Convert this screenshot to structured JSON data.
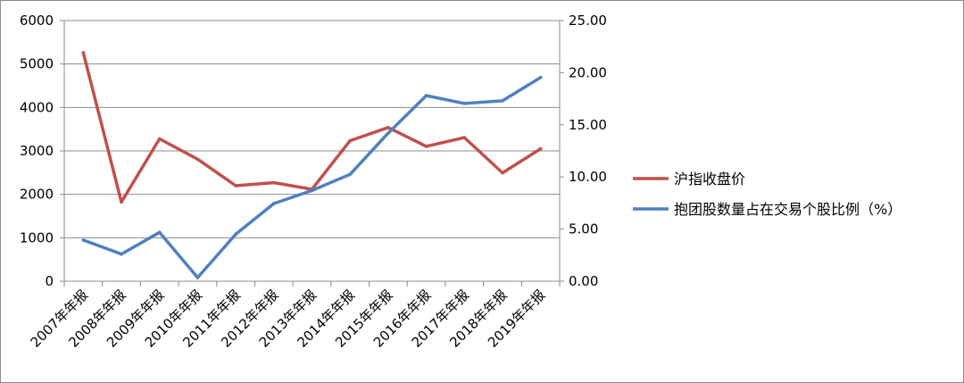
{
  "chart_data": {
    "type": "line",
    "categories": [
      "2007年年报",
      "2008年年报",
      "2009年年报",
      "2010年年报",
      "2011年年报",
      "2012年年报",
      "2013年年报",
      "2014年年报",
      "2015年年报",
      "2016年年报",
      "2017年年报",
      "2018年年报",
      "2019年年报"
    ],
    "series": [
      {
        "name": "沪指收盘价",
        "axis": "left",
        "color": "#c0504d",
        "values": [
          5261,
          1821,
          3277,
          2808,
          2199,
          2269,
          2116,
          3235,
          3539,
          3104,
          3307,
          2494,
          3050
        ]
      },
      {
        "name": "抱团股数量占在交易个股比例（%）",
        "axis": "right",
        "color": "#4f81bd",
        "values": [
          3.95,
          2.6,
          4.68,
          0.35,
          4.5,
          7.45,
          8.7,
          10.25,
          14.2,
          17.8,
          17.05,
          17.3,
          19.55
        ]
      }
    ],
    "y_left": {
      "min": 0,
      "max": 6000,
      "ticks": [
        "0",
        "1000",
        "2000",
        "3000",
        "4000",
        "5000",
        "6000"
      ]
    },
    "y_right": {
      "min": 0,
      "max": 25,
      "ticks": [
        "0.00",
        "5.00",
        "10.00",
        "15.00",
        "20.00",
        "25.00"
      ]
    },
    "grid": true,
    "legend": "right",
    "title": "",
    "xlabel": "",
    "ylabel": ""
  }
}
